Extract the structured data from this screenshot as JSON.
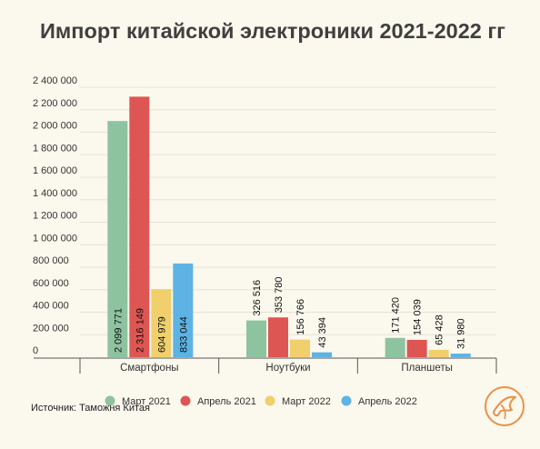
{
  "chart_data": {
    "type": "bar",
    "title": "Импорт китайской электроники 2021-2022 гг",
    "categories": [
      "Смартфоны",
      "Ноутбуки",
      "Планшеты"
    ],
    "series": [
      {
        "name": "Март 2021",
        "color": "#8ec3a0",
        "values": [
          2099771,
          326516,
          171420
        ],
        "labels": [
          "2 099 771",
          "326 516",
          "171 420"
        ]
      },
      {
        "name": "Апрель 2021",
        "color": "#de5653",
        "values": [
          2316149,
          353780,
          154039
        ],
        "labels": [
          "2 316 149",
          "353 780",
          "154 039"
        ]
      },
      {
        "name": "Март 2022",
        "color": "#f0cf6c",
        "values": [
          604979,
          156766,
          65428
        ],
        "labels": [
          "604 979",
          "156 766",
          "65 428"
        ]
      },
      {
        "name": "Апрель 2022",
        "color": "#5cb3e4",
        "values": [
          833044,
          43394,
          31980
        ],
        "labels": [
          "833 044",
          "43 394",
          "31 980"
        ]
      }
    ],
    "ylim": [
      0,
      2400000
    ],
    "yticks": [
      "0",
      "200 000",
      "400 000",
      "600 000",
      "800 000",
      "1 000 000",
      "1 200 000",
      "1 400 000",
      "1 600 000",
      "1 800 000",
      "2 000 000",
      "2 200 000",
      "2 400 000"
    ],
    "grid": true,
    "legend_position": "bottom",
    "source": "Источник: Таможня Китая"
  },
  "logo": {
    "icon": "bird-logo-icon",
    "color": "#e8924a"
  }
}
